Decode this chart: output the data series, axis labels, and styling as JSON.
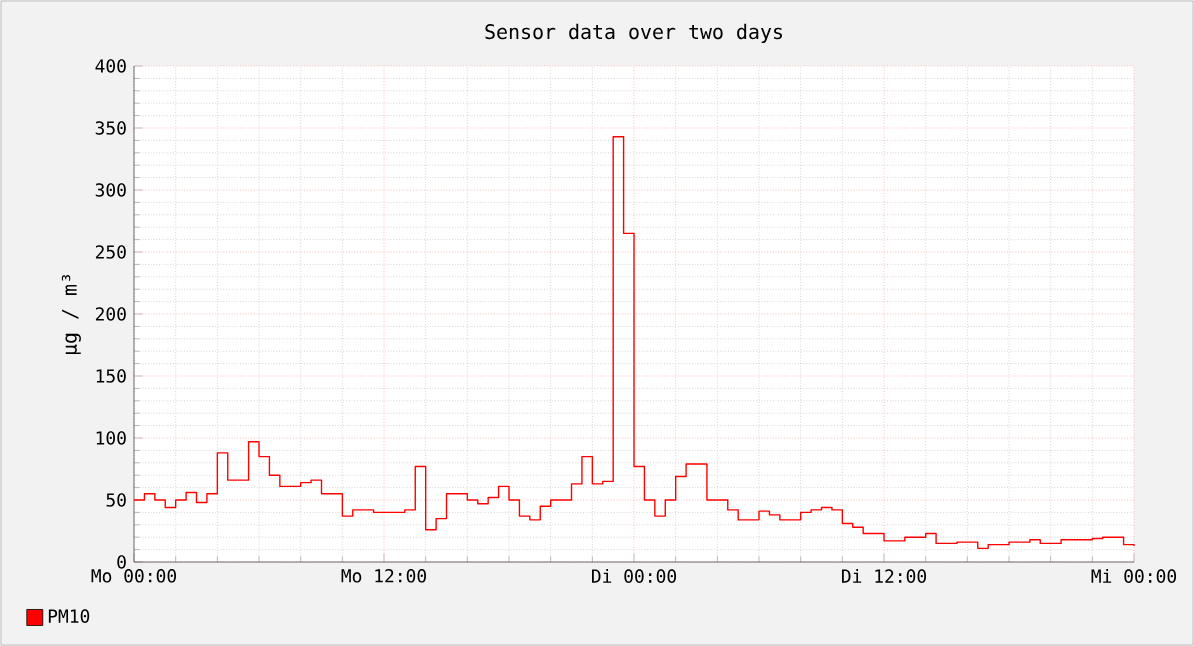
{
  "chart_data": {
    "type": "step",
    "title": "Sensor data over two days",
    "ylabel": "µg / m³",
    "categories": [
      "Mo 00:00",
      null,
      null,
      null,
      null,
      null,
      null,
      null,
      null,
      null,
      null,
      null,
      null,
      null,
      null,
      null,
      null,
      null,
      null,
      null,
      null,
      null,
      null,
      null,
      "Mo 12:00",
      null,
      null,
      null,
      null,
      null,
      null,
      null,
      null,
      null,
      null,
      null,
      null,
      null,
      null,
      null,
      null,
      null,
      null,
      null,
      null,
      null,
      null,
      null,
      "Di 00:00",
      null,
      null,
      null,
      null,
      null,
      null,
      null,
      null,
      null,
      null,
      null,
      null,
      null,
      null,
      null,
      null,
      null,
      null,
      null,
      null,
      null,
      null,
      null,
      "Di 12:00",
      null,
      null,
      null,
      null,
      null,
      null,
      null,
      null,
      null,
      null,
      null,
      null,
      null,
      null,
      null,
      null,
      null,
      null,
      null,
      null,
      null,
      null,
      null,
      "Mi 00:00"
    ],
    "series": [
      {
        "name": "PM10",
        "color": "#ff0000",
        "values": [
          50,
          55,
          50,
          44,
          50,
          56,
          48,
          55,
          88,
          66,
          66,
          97,
          85,
          70,
          61,
          61,
          64,
          66,
          55,
          55,
          37,
          42,
          42,
          40,
          40,
          40,
          42,
          77,
          26,
          35,
          55,
          55,
          50,
          47,
          52,
          61,
          50,
          37,
          34,
          45,
          50,
          50,
          63,
          85,
          63,
          65,
          343,
          265,
          77,
          50,
          37,
          50,
          69,
          79,
          79,
          50,
          50,
          42,
          34,
          34,
          41,
          38,
          34,
          34,
          40,
          42,
          44,
          42,
          31,
          28,
          23,
          23,
          17,
          17,
          20,
          20,
          23,
          15,
          15,
          16,
          16,
          11,
          14,
          14,
          16,
          16,
          18,
          15,
          15,
          18,
          18,
          18,
          19,
          20,
          20,
          14,
          13
        ]
      }
    ],
    "ylim": [
      0,
      400
    ],
    "yticks": [
      0,
      50,
      100,
      150,
      200,
      250,
      300,
      350,
      400
    ],
    "grid": true,
    "legend": "bottom left"
  }
}
